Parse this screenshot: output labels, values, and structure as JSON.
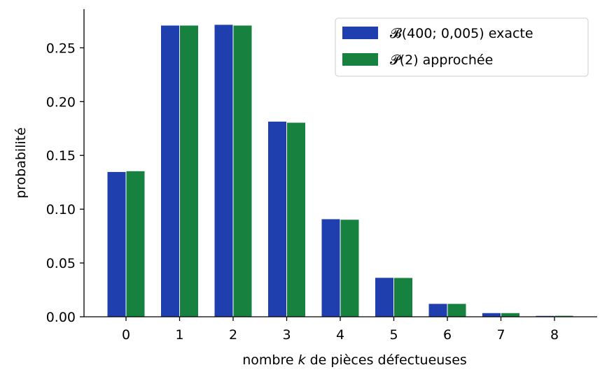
{
  "chart_data": {
    "type": "bar",
    "categories": [
      "0",
      "1",
      "2",
      "3",
      "4",
      "5",
      "6",
      "7",
      "8"
    ],
    "x": [
      0,
      1,
      2,
      3,
      4,
      5,
      6,
      7,
      8
    ],
    "series": [
      {
        "name": "𝓑(400;  0,005) exacte",
        "color": "#1f3faf",
        "values": [
          0.1346,
          0.2707,
          0.2714,
          0.1814,
          0.0907,
          0.0362,
          0.012,
          0.0034,
          0.0008
        ]
      },
      {
        "name": "𝓟(2) approchée",
        "color": "#178240",
        "values": [
          0.1353,
          0.2707,
          0.2707,
          0.1804,
          0.0902,
          0.0361,
          0.012,
          0.0034,
          0.0009
        ]
      }
    ],
    "xlabel_parts": [
      "nombre ",
      "k",
      " de pièces défectueuses"
    ],
    "ylabel": "probabilité",
    "ylim": [
      0,
      0.286
    ],
    "yticks": [
      0.0,
      0.05,
      0.1,
      0.15,
      0.2,
      0.25
    ],
    "ytick_labels": [
      "0.00",
      "0.05",
      "0.10",
      "0.15",
      "0.20",
      "0.25"
    ],
    "grid": false,
    "legend": "top-right"
  }
}
